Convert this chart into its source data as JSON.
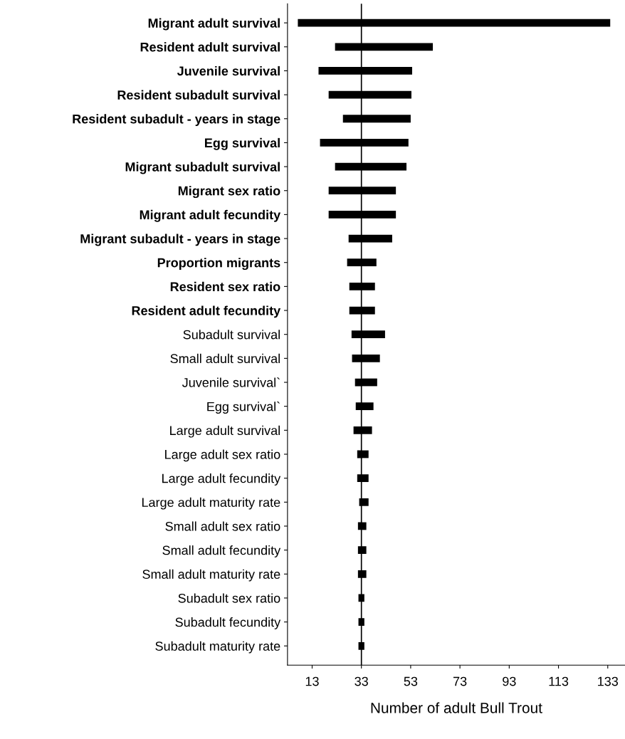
{
  "chart_data": {
    "type": "bar",
    "orientation": "horizontal",
    "xlabel": "Number of adult Bull Trout",
    "categories": [
      "Migrant adult survival",
      "Resident adult survival",
      "Juvenile survival",
      "Resident subadult survival",
      "Resident subadult - years in stage",
      "Egg survival",
      "Migrant subadult survival",
      "Migrant sex ratio",
      "Migrant adult fecundity",
      "Migrant subadult - years in stage",
      "Proportion migrants",
      "Resident sex ratio",
      "Resident adult fecundity",
      "Subadult survival",
      "Small adult survival",
      "Juvenile survival`",
      "Egg survival`",
      "Large adult survival",
      "Large adult sex ratio",
      "Large adult fecundity",
      "Large adult maturity rate",
      "Small adult sex ratio",
      "Small adult fecundity",
      "Small adult maturity rate",
      "Subadult sex ratio",
      "Subadult fecundity",
      "Subadult maturity rate"
    ],
    "base": [
      7.2,
      22.3,
      15.6,
      19.7,
      25.5,
      16.2,
      22.3,
      19.7,
      19.7,
      27.8,
      27.2,
      28.1,
      28.1,
      29.0,
      29.2,
      30.4,
      30.7,
      29.8,
      31.3,
      31.3,
      32.1,
      31.6,
      31.6,
      31.6,
      31.8,
      31.8,
      31.8
    ],
    "values": [
      126.8,
      39.7,
      38.0,
      33.6,
      27.5,
      35.9,
      29.0,
      27.3,
      27.3,
      17.7,
      11.9,
      10.4,
      10.4,
      13.6,
      11.3,
      9.0,
      7.2,
      7.5,
      4.6,
      4.6,
      3.8,
      3.4,
      3.4,
      3.4,
      2.4,
      2.4,
      2.4
    ],
    "color": "#000000",
    "xlim": [
      3,
      140
    ],
    "xticks": [
      13,
      33,
      53,
      73,
      93,
      113,
      133
    ],
    "ref_lines": [
      {
        "axis": "x",
        "value": 33,
        "color": "#000000"
      }
    ],
    "grid": false,
    "legend": false
  }
}
